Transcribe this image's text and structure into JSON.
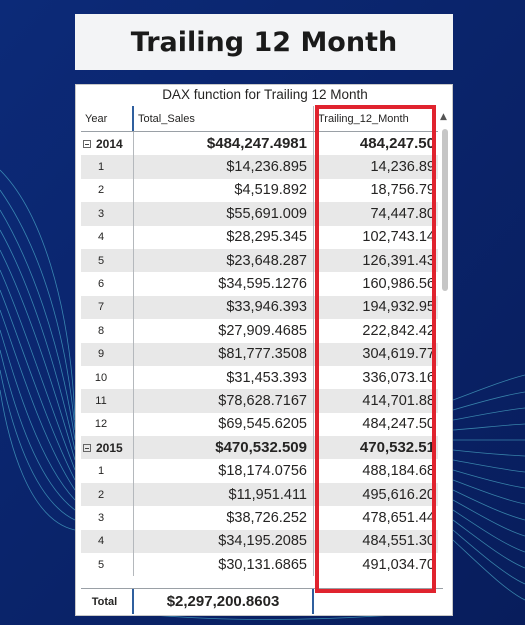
{
  "page_title": "Trailing 12 Month",
  "visual": {
    "title": "DAX function for Trailing 12 Month",
    "columns": {
      "year": "Year",
      "total_sales": "Total_Sales",
      "trailing": "Trailing_12_Month"
    },
    "rows": [
      {
        "type": "group",
        "year": "2014",
        "total_sales": "$484,247.4981",
        "trailing": "484,247.50"
      },
      {
        "type": "data",
        "year": "1",
        "total_sales": "$14,236.895",
        "trailing": "14,236.89"
      },
      {
        "type": "data",
        "year": "2",
        "total_sales": "$4,519.892",
        "trailing": "18,756.79"
      },
      {
        "type": "data",
        "year": "3",
        "total_sales": "$55,691.009",
        "trailing": "74,447.80"
      },
      {
        "type": "data",
        "year": "4",
        "total_sales": "$28,295.345",
        "trailing": "102,743.14"
      },
      {
        "type": "data",
        "year": "5",
        "total_sales": "$23,648.287",
        "trailing": "126,391.43"
      },
      {
        "type": "data",
        "year": "6",
        "total_sales": "$34,595.1276",
        "trailing": "160,986.56"
      },
      {
        "type": "data",
        "year": "7",
        "total_sales": "$33,946.393",
        "trailing": "194,932.95"
      },
      {
        "type": "data",
        "year": "8",
        "total_sales": "$27,909.4685",
        "trailing": "222,842.42"
      },
      {
        "type": "data",
        "year": "9",
        "total_sales": "$81,777.3508",
        "trailing": "304,619.77"
      },
      {
        "type": "data",
        "year": "10",
        "total_sales": "$31,453.393",
        "trailing": "336,073.16"
      },
      {
        "type": "data",
        "year": "11",
        "total_sales": "$78,628.7167",
        "trailing": "414,701.88"
      },
      {
        "type": "data",
        "year": "12",
        "total_sales": "$69,545.6205",
        "trailing": "484,247.50"
      },
      {
        "type": "group",
        "year": "2015",
        "total_sales": "$470,532.509",
        "trailing": "470,532.51"
      },
      {
        "type": "data",
        "year": "1",
        "total_sales": "$18,174.0756",
        "trailing": "488,184.68"
      },
      {
        "type": "data",
        "year": "2",
        "total_sales": "$11,951.411",
        "trailing": "495,616.20"
      },
      {
        "type": "data",
        "year": "3",
        "total_sales": "$38,726.252",
        "trailing": "478,651.44"
      },
      {
        "type": "data",
        "year": "4",
        "total_sales": "$34,195.2085",
        "trailing": "484,551.30"
      },
      {
        "type": "data",
        "year": "5",
        "total_sales": "$30,131.6865",
        "trailing": "491,034.70"
      }
    ],
    "total": {
      "label": "Total",
      "total_sales": "$2,297,200.8603",
      "trailing": ""
    }
  },
  "colors": {
    "background": "#0a2470",
    "wave_lines": "#5fd3e6",
    "highlight_box": "#e0232e",
    "header_accent": "#2f5f9e",
    "row_shade": "#e8e8e8"
  }
}
